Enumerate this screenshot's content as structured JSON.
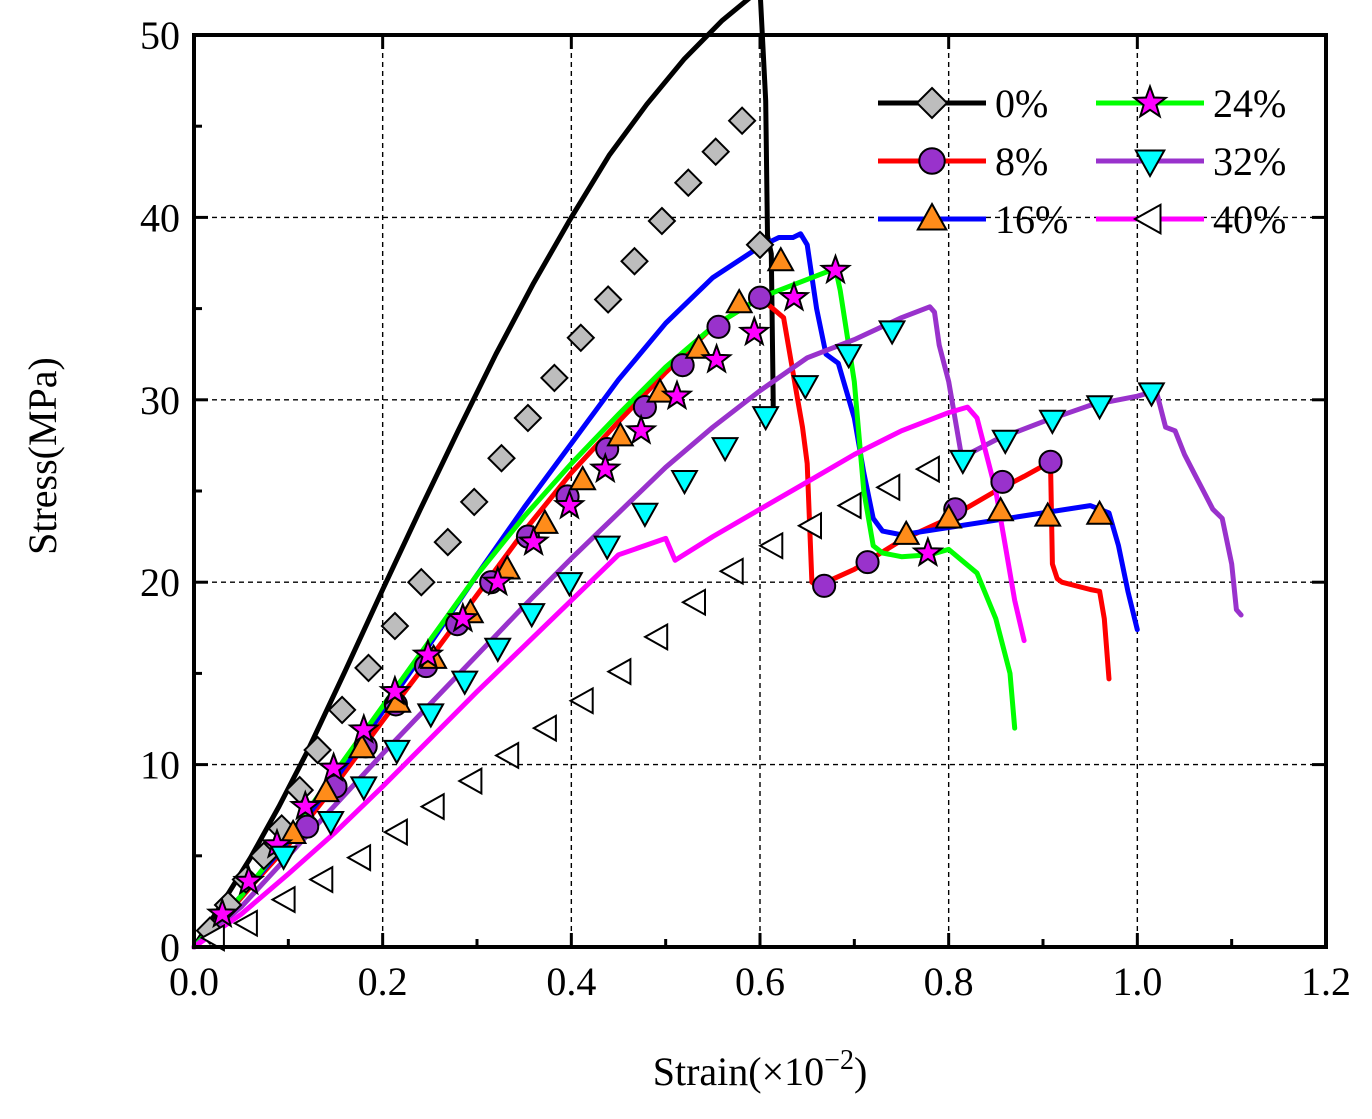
{
  "chart_data": {
    "type": "line",
    "title": "",
    "xlabel": "Strain(×10",
    "xlabel_exponent": "−2",
    "xlabel_close": ")",
    "ylabel": "Stress(MPa)",
    "xlim": [
      0.0,
      1.2
    ],
    "ylim": [
      0,
      50
    ],
    "grid": true,
    "legend_position": "top-right",
    "x_ticks": [
      "0.0",
      "0.2",
      "0.4",
      "0.6",
      "0.8",
      "1.0",
      "1.2"
    ],
    "y_ticks": [
      "0",
      "10",
      "20",
      "30",
      "40",
      "50"
    ],
    "series": [
      {
        "name": "0%",
        "color": "#000000",
        "marker": "diamond",
        "marker_fill": "#bdbdbd",
        "x": [
          0.0,
          0.03,
          0.06,
          0.09,
          0.12,
          0.16,
          0.2,
          0.24,
          0.28,
          0.32,
          0.36,
          0.4,
          0.44,
          0.48,
          0.52,
          0.56,
          0.6,
          0.606,
          0.608,
          0.612,
          0.614,
          0.614
        ],
        "y": [
          0.0,
          2.4,
          4.9,
          7.7,
          10.7,
          15.1,
          19.6,
          24.0,
          28.3,
          32.5,
          36.4,
          40.0,
          43.4,
          46.2,
          48.7,
          50.8,
          52.5,
          46.4,
          39.0,
          38.0,
          30.0,
          29.3
        ],
        "marker_x": [
          0.017,
          0.036,
          0.055,
          0.074,
          0.093,
          0.112,
          0.131,
          0.157,
          0.185,
          0.213,
          0.241,
          0.269,
          0.297,
          0.326,
          0.354,
          0.382,
          0.41,
          0.439,
          0.467,
          0.496,
          0.524,
          0.553,
          0.581,
          0.6
        ],
        "marker_y": [
          0.9,
          2.3,
          3.7,
          5.0,
          6.5,
          8.6,
          10.8,
          13.0,
          15.3,
          17.6,
          20.0,
          22.2,
          24.4,
          26.8,
          29.0,
          31.2,
          33.4,
          35.5,
          37.6,
          39.8,
          41.9,
          43.6,
          45.3,
          38.5
        ]
      },
      {
        "name": "8%",
        "color": "#ff0000",
        "marker": "circle",
        "marker_fill": "#9932cc",
        "x": [
          0.0,
          0.03,
          0.06,
          0.1,
          0.15,
          0.2,
          0.25,
          0.3,
          0.35,
          0.4,
          0.45,
          0.5,
          0.55,
          0.6,
          0.625,
          0.64,
          0.645,
          0.65,
          0.655,
          0.66,
          0.665,
          0.67,
          0.7,
          0.75,
          0.8,
          0.85,
          0.88,
          0.908,
          0.91,
          0.915,
          0.92,
          0.95,
          0.96,
          0.965,
          0.97
        ],
        "y": [
          0.0,
          1.5,
          3.3,
          5.6,
          8.9,
          12.4,
          15.8,
          19.3,
          22.8,
          26.0,
          28.8,
          31.5,
          34.0,
          35.6,
          34.5,
          30.0,
          28.5,
          26.5,
          20.0,
          19.8,
          19.7,
          20.0,
          20.7,
          22.3,
          23.5,
          25.0,
          25.8,
          26.6,
          21.0,
          20.2,
          20.0,
          19.6,
          19.5,
          18.0,
          14.7
        ],
        "marker_x": [
          0.12,
          0.15,
          0.182,
          0.214,
          0.246,
          0.279,
          0.315,
          0.354,
          0.396,
          0.438,
          0.478,
          0.518,
          0.556,
          0.6,
          0.668,
          0.714,
          0.807,
          0.857,
          0.908
        ],
        "marker_y": [
          6.6,
          8.8,
          11.0,
          13.3,
          15.4,
          17.7,
          20.0,
          22.5,
          24.7,
          27.3,
          29.6,
          31.9,
          34.0,
          35.6,
          19.8,
          21.1,
          24.0,
          25.5,
          26.6
        ]
      },
      {
        "name": "16%",
        "color": "#0000ff",
        "marker": "triangle-up",
        "marker_fill": "#ff8c1a",
        "x": [
          0.0,
          0.05,
          0.1,
          0.15,
          0.2,
          0.25,
          0.3,
          0.35,
          0.4,
          0.45,
          0.5,
          0.55,
          0.6,
          0.62,
          0.635,
          0.643,
          0.65,
          0.66,
          0.67,
          0.683,
          0.7,
          0.71,
          0.72,
          0.73,
          0.75,
          0.8,
          0.85,
          0.9,
          0.95,
          0.96,
          0.97,
          0.98,
          0.99,
          1.0
        ],
        "y": [
          0.0,
          2.8,
          5.8,
          9.2,
          12.9,
          16.6,
          20.4,
          24.1,
          27.6,
          31.1,
          34.2,
          36.7,
          38.4,
          38.9,
          38.9,
          39.1,
          38.5,
          35.0,
          32.5,
          32.0,
          29.0,
          26.0,
          23.5,
          22.8,
          22.6,
          23.0,
          23.4,
          23.8,
          24.2,
          24.0,
          23.8,
          22.0,
          19.5,
          17.4
        ],
        "marker_x": [
          0.105,
          0.14,
          0.178,
          0.216,
          0.254,
          0.293,
          0.332,
          0.372,
          0.412,
          0.452,
          0.494,
          0.535,
          0.578,
          0.622,
          0.755,
          0.8,
          0.855,
          0.905,
          0.96
        ],
        "marker_y": [
          6.2,
          8.5,
          10.9,
          13.4,
          15.8,
          18.3,
          20.7,
          23.2,
          25.6,
          28.0,
          30.4,
          32.8,
          35.3,
          37.6,
          22.6,
          23.5,
          23.9,
          23.6,
          23.7
        ]
      },
      {
        "name": "24%",
        "color": "#00ff00",
        "marker": "star",
        "marker_fill": "#ff00ff",
        "x": [
          0.0,
          0.05,
          0.1,
          0.15,
          0.2,
          0.25,
          0.3,
          0.35,
          0.4,
          0.45,
          0.5,
          0.55,
          0.6,
          0.65,
          0.68,
          0.685,
          0.7,
          0.71,
          0.72,
          0.725,
          0.73,
          0.75,
          0.78,
          0.8,
          0.83,
          0.85,
          0.865,
          0.87
        ],
        "y": [
          0.0,
          2.8,
          6.0,
          9.6,
          13.2,
          16.8,
          20.4,
          23.6,
          26.5,
          29.2,
          31.8,
          34.0,
          35.6,
          36.6,
          37.2,
          36.0,
          31.0,
          25.0,
          22.0,
          21.8,
          21.6,
          21.4,
          21.5,
          21.8,
          20.5,
          18.0,
          15.0,
          12.0
        ],
        "marker_x": [
          0.03,
          0.058,
          0.088,
          0.118,
          0.148,
          0.18,
          0.213,
          0.248,
          0.285,
          0.322,
          0.36,
          0.398,
          0.436,
          0.474,
          0.512,
          0.554,
          0.594,
          0.636,
          0.68,
          0.778
        ],
        "marker_y": [
          1.8,
          3.6,
          5.6,
          7.7,
          9.8,
          11.9,
          14.0,
          16.0,
          18.0,
          20.0,
          22.2,
          24.2,
          26.2,
          28.3,
          30.2,
          32.2,
          33.7,
          35.6,
          37.1,
          21.6
        ]
      },
      {
        "name": "32%",
        "color": "#9932cc",
        "marker": "triangle-down",
        "marker_fill": "#00ffff",
        "x": [
          0.0,
          0.05,
          0.1,
          0.15,
          0.2,
          0.25,
          0.3,
          0.35,
          0.4,
          0.45,
          0.5,
          0.55,
          0.6,
          0.65,
          0.7,
          0.75,
          0.78,
          0.785,
          0.79,
          0.8,
          0.81,
          0.815,
          0.82,
          0.85,
          0.9,
          0.95,
          1.0,
          1.02,
          1.03,
          1.04,
          1.05,
          1.06,
          1.07,
          1.08,
          1.09,
          1.1,
          1.105,
          1.11
        ],
        "y": [
          0.0,
          2.2,
          5.0,
          7.8,
          10.6,
          13.3,
          16.0,
          18.7,
          21.3,
          23.8,
          26.3,
          28.5,
          30.5,
          32.3,
          33.3,
          34.5,
          35.1,
          34.8,
          33.0,
          31.0,
          28.0,
          26.5,
          27.0,
          27.8,
          28.8,
          29.7,
          30.2,
          30.5,
          28.5,
          28.3,
          27.0,
          26.0,
          25.0,
          24.0,
          23.5,
          21.0,
          18.5,
          18.2
        ],
        "marker_x": [
          0.095,
          0.145,
          0.18,
          0.215,
          0.251,
          0.287,
          0.322,
          0.358,
          0.398,
          0.438,
          0.478,
          0.52,
          0.563,
          0.606,
          0.648,
          0.694,
          0.74,
          0.815,
          0.86,
          0.91,
          0.96,
          1.015
        ],
        "marker_y": [
          5.0,
          6.9,
          8.8,
          10.8,
          12.8,
          14.6,
          16.4,
          18.3,
          20.0,
          22.0,
          23.8,
          25.6,
          27.4,
          29.1,
          30.8,
          32.5,
          33.8,
          26.7,
          27.8,
          28.9,
          29.7,
          30.4
        ]
      },
      {
        "name": "40%",
        "color": "#ff00ff",
        "marker": "triangle-left",
        "marker_fill": "#ffffff",
        "x": [
          0.0,
          0.05,
          0.1,
          0.15,
          0.2,
          0.25,
          0.3,
          0.35,
          0.4,
          0.45,
          0.5,
          0.51,
          0.55,
          0.6,
          0.65,
          0.7,
          0.75,
          0.8,
          0.82,
          0.83,
          0.84,
          0.85,
          0.86,
          0.87,
          0.88
        ],
        "y": [
          0.0,
          1.8,
          4.0,
          6.3,
          8.8,
          11.4,
          14.0,
          16.5,
          19.0,
          21.5,
          22.4,
          21.2,
          22.5,
          24.0,
          25.5,
          27.0,
          28.3,
          29.3,
          29.6,
          29.0,
          27.0,
          25.0,
          22.0,
          19.0,
          16.8
        ],
        "marker_x": [
          0.022,
          0.057,
          0.097,
          0.137,
          0.177,
          0.216,
          0.255,
          0.295,
          0.334,
          0.374,
          0.413,
          0.453,
          0.492,
          0.532,
          0.572,
          0.614,
          0.655,
          0.697,
          0.738,
          0.78
        ],
        "marker_y": [
          0.5,
          1.3,
          2.6,
          3.7,
          4.9,
          6.3,
          7.7,
          9.1,
          10.5,
          12.0,
          13.5,
          15.1,
          17.0,
          18.9,
          20.6,
          22.0,
          23.1,
          24.2,
          25.2,
          26.2
        ]
      }
    ]
  }
}
